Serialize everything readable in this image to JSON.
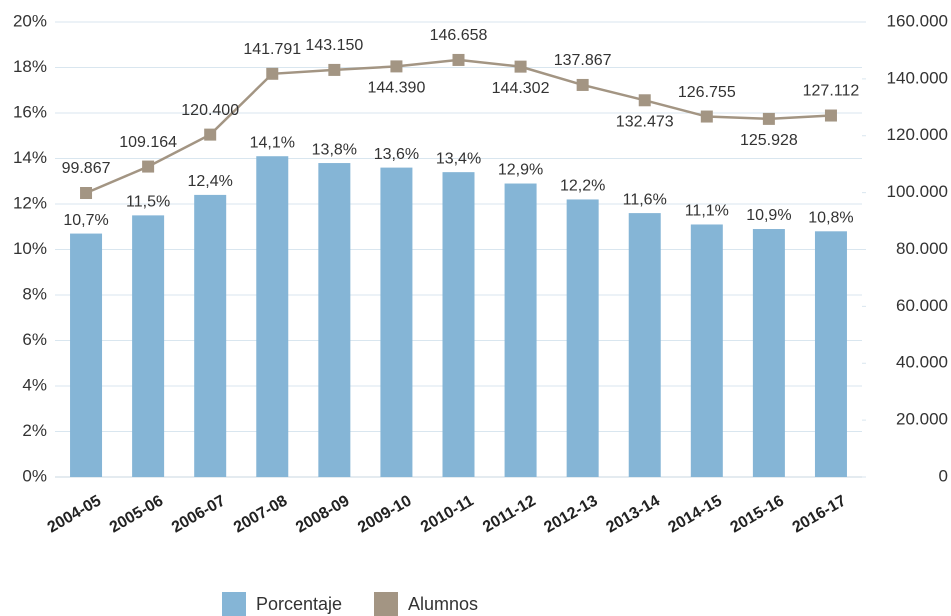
{
  "chart_data": {
    "type": "bar_line",
    "categories": [
      "2004-05",
      "2005-06",
      "2006-07",
      "2007-08",
      "2008-09",
      "2009-10",
      "2010-11",
      "2011-12",
      "2012-13",
      "2013-14",
      "2014-15",
      "2015-16",
      "2016-17"
    ],
    "series": [
      {
        "name": "Porcentaje",
        "type": "bar",
        "color": "#85b5d6",
        "values": [
          10.7,
          11.5,
          12.4,
          14.1,
          13.8,
          13.6,
          13.4,
          12.9,
          12.2,
          11.6,
          11.1,
          10.9,
          10.8
        ],
        "value_labels": [
          "10,7%",
          "11,5%",
          "12,4%",
          "14,1%",
          "13,8%",
          "13,6%",
          "13,4%",
          "12,9%",
          "12,2%",
          "11,6%",
          "11,1%",
          "10,9%",
          "10,8%"
        ]
      },
      {
        "name": "Alumnos",
        "type": "line",
        "axis": "y2",
        "color": "#a39583",
        "values": [
          99867,
          109164,
          120400,
          141791,
          143150,
          144390,
          146658,
          144302,
          137867,
          132473,
          126755,
          125928,
          127112
        ],
        "value_labels": [
          "99.867",
          "109.164",
          "120.400",
          "141.791",
          "143.150",
          "144.390",
          "146.658",
          "144.302",
          "137.867",
          "132.473",
          "126.755",
          "125.928",
          "127.112"
        ]
      }
    ],
    "ylim": [
      0,
      20
    ],
    "yticks": [
      {
        "value": 0,
        "label": "0%"
      },
      {
        "value": 2,
        "label": "2%"
      },
      {
        "value": 4,
        "label": "4%"
      },
      {
        "value": 6,
        "label": "6%"
      },
      {
        "value": 8,
        "label": "8%"
      },
      {
        "value": 10,
        "label": "10%"
      },
      {
        "value": 12,
        "label": "12%"
      },
      {
        "value": 14,
        "label": "14%"
      },
      {
        "value": 16,
        "label": "16%"
      },
      {
        "value": 18,
        "label": "18%"
      },
      {
        "value": 20,
        "label": "20%"
      }
    ],
    "y2lim": [
      0,
      160000
    ],
    "y2ticks": [
      0,
      {
        "value": 20000,
        "label": "20.000"
      },
      {
        "value": 40000,
        "label": "40.000"
      },
      {
        "value": 60000,
        "label": "60.000"
      },
      {
        "value": 80000,
        "label": "80.000"
      },
      {
        "value": 100000,
        "label": "100.000"
      },
      {
        "value": 120000,
        "label": "120.000"
      },
      {
        "value": 140000,
        "label": "140.000"
      },
      {
        "value": 160000,
        "label": "160.000"
      }
    ],
    "grid": true,
    "legend": "bottom"
  }
}
